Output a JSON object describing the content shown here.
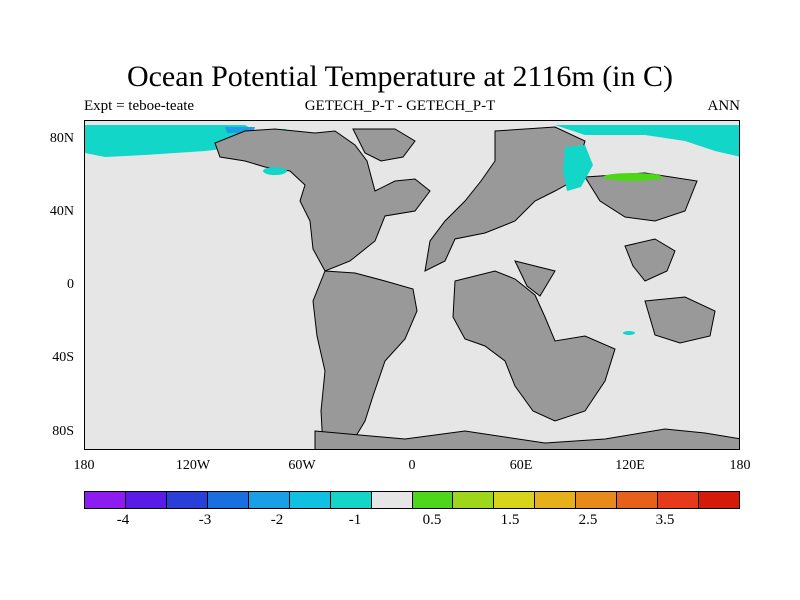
{
  "title": "Ocean Potential Temperature at 2116m (in C)",
  "subtitle_left": "Expt = teboe-teate",
  "subtitle_center": "GETECH_P-T - GETECH_P-T",
  "subtitle_right": "ANN",
  "lat_labels": [
    "80N",
    "40N",
    "0",
    "40S",
    "80S"
  ],
  "lon_labels": [
    "180",
    "120W",
    "60W",
    "0",
    "60E",
    "120E",
    "180"
  ],
  "colorbar": {
    "colors": [
      "#8c1cf0",
      "#5a1ae8",
      "#2a3fd8",
      "#1a6fe0",
      "#1a9ee6",
      "#10c0e0",
      "#12d6c8",
      "#e6e6e6",
      "#4ed61a",
      "#9ed61a",
      "#d8d41a",
      "#e6b01a",
      "#e68a1a",
      "#e6621a",
      "#e63a1a",
      "#d61a0a"
    ],
    "labels": [
      "-4",
      "-3",
      "-2",
      "-1",
      "0.5",
      "1.5",
      "2.5",
      "3.5"
    ]
  },
  "map_colors": {
    "land": "#999999",
    "ocean": "#e6e6e6",
    "anomaly_cyan": "#12d6c8",
    "anomaly_blue": "#1a9ee6",
    "anomaly_green": "#4ed61a"
  }
}
